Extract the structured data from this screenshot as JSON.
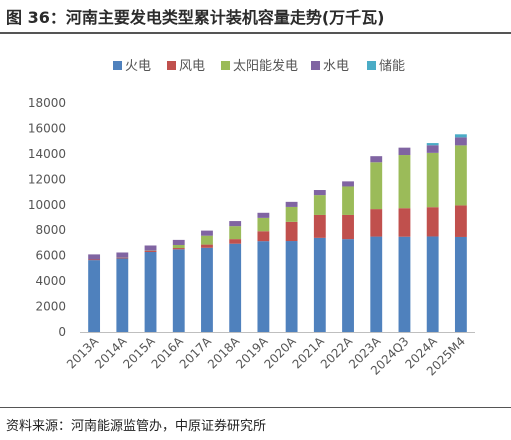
{
  "title": "图 36：河南主要发电类型累计装机容量走势(万千瓦)",
  "source": "资料来源：河南能源监管办，中原证券研究所",
  "chart_data": {
    "type": "bar",
    "stacked": true,
    "title": "",
    "xlabel": "",
    "ylabel": "",
    "ylim": [
      0,
      18000
    ],
    "yticks": [
      0,
      2000,
      4000,
      6000,
      8000,
      10000,
      12000,
      14000,
      16000,
      18000
    ],
    "legend_position": "top",
    "grid": false,
    "categories": [
      "2013A",
      "2014A",
      "2015A",
      "2016A",
      "2017A",
      "2018A",
      "2019A",
      "2020A",
      "2021A",
      "2022A",
      "2023A",
      "2024Q3",
      "2024A",
      "2025M4"
    ],
    "series": [
      {
        "name": "火电",
        "color": "#4f81bd",
        "values": [
          5650,
          5780,
          6290,
          6500,
          6620,
          6940,
          7140,
          7150,
          7400,
          7300,
          7500,
          7490,
          7510,
          7470
        ]
      },
      {
        "name": "风电",
        "color": "#c0504d",
        "values": [
          50,
          60,
          90,
          100,
          250,
          360,
          780,
          1510,
          1800,
          1900,
          2160,
          2240,
          2300,
          2480
        ]
      },
      {
        "name": "太阳能发电",
        "color": "#9bbb59",
        "values": [
          0,
          10,
          20,
          240,
          700,
          1020,
          1050,
          1170,
          1560,
          2240,
          3680,
          4180,
          4270,
          4720
        ]
      },
      {
        "name": "水电",
        "color": "#8064a2",
        "values": [
          400,
          400,
          400,
          400,
          400,
          400,
          400,
          400,
          400,
          400,
          480,
          580,
          600,
          630
        ]
      },
      {
        "name": "储能",
        "color": "#4bacc6",
        "values": [
          0,
          0,
          0,
          0,
          0,
          0,
          0,
          0,
          0,
          0,
          0,
          0,
          170,
          240
        ]
      }
    ]
  }
}
